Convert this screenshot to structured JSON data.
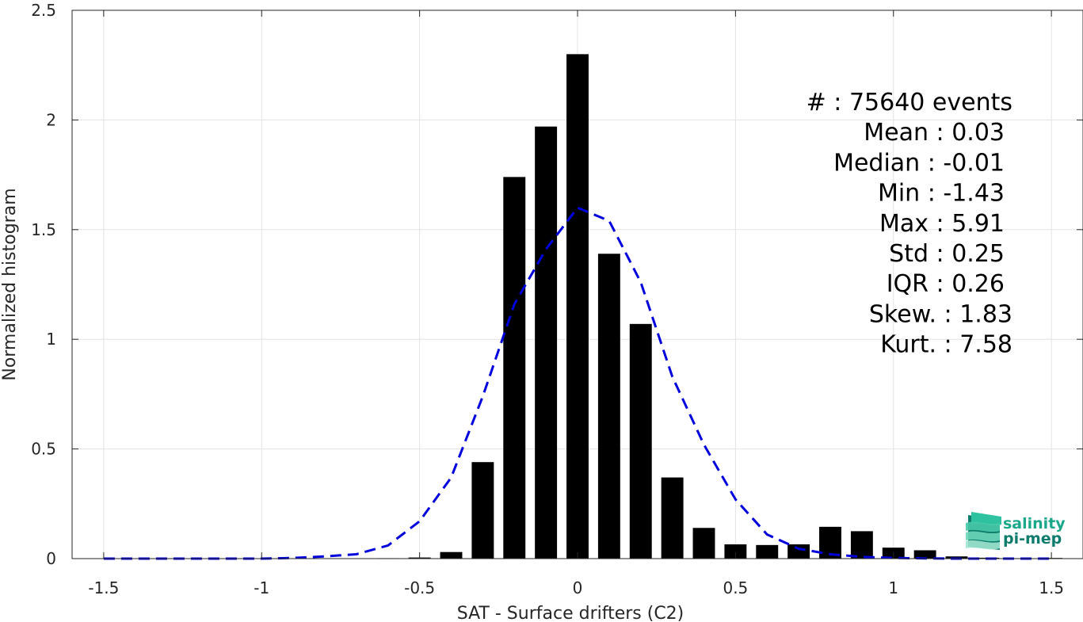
{
  "chart_data": {
    "type": "bar",
    "xlabel": "SAT - Surface drifters (C2)",
    "ylabel": "Normalized histogram",
    "xlim": [
      -1.6,
      1.6
    ],
    "ylim": [
      0,
      2.5
    ],
    "xticks": [
      -1.5,
      -1,
      -0.5,
      0,
      0.5,
      1,
      1.5
    ],
    "xtick_labels": [
      "-1.5",
      "-1",
      "-0.5",
      "0",
      "0.5",
      "1",
      "1.5"
    ],
    "yticks": [
      0,
      0.5,
      1,
      1.5,
      2,
      2.5
    ],
    "ytick_labels": [
      "0",
      "0.5",
      "1",
      "1.5",
      "2",
      "2.5"
    ],
    "grid": true,
    "bar_width": 0.07,
    "bar_color": "#000000",
    "bars": {
      "x": [
        -1.5,
        -1.4,
        -1.3,
        -1.2,
        -1.1,
        -1.0,
        -0.9,
        -0.8,
        -0.7,
        -0.6,
        -0.5,
        -0.4,
        -0.3,
        -0.2,
        -0.1,
        0.0,
        0.1,
        0.2,
        0.3,
        0.4,
        0.5,
        0.6,
        0.7,
        0.8,
        0.9,
        1.0,
        1.1,
        1.2,
        1.3,
        1.4,
        1.5
      ],
      "values": [
        0,
        0,
        0,
        0,
        0,
        0,
        0,
        0,
        0.001,
        0.002,
        0.005,
        0.03,
        0.44,
        1.74,
        1.97,
        2.3,
        1.39,
        1.07,
        0.37,
        0.14,
        0.065,
        0.062,
        0.065,
        0.145,
        0.125,
        0.05,
        0.038,
        0.01,
        0.004,
        0.002,
        0.003
      ]
    },
    "fit_curve": {
      "style": "dashed",
      "color": "#0000dd",
      "x": [
        -1.5,
        -1.4,
        -1.3,
        -1.2,
        -1.1,
        -1.0,
        -0.9,
        -0.8,
        -0.7,
        -0.6,
        -0.5,
        -0.4,
        -0.3,
        -0.2,
        -0.1,
        0.0,
        0.1,
        0.2,
        0.3,
        0.4,
        0.5,
        0.6,
        0.7,
        0.8,
        0.9,
        1.0,
        1.1,
        1.2,
        1.3,
        1.4,
        1.5
      ],
      "values": [
        0,
        0,
        0,
        0,
        0,
        0,
        0.003,
        0.01,
        0.02,
        0.06,
        0.17,
        0.37,
        0.74,
        1.16,
        1.41,
        1.6,
        1.54,
        1.26,
        0.83,
        0.52,
        0.27,
        0.11,
        0.045,
        0.02,
        0.008,
        0.003,
        0.001,
        0,
        0,
        0,
        0
      ]
    },
    "annotation_position": "top-right",
    "stats": [
      {
        "label": "#  : 75640 events"
      },
      {
        "label": "Mean : 0.03"
      },
      {
        "label": "Median : -0.01"
      },
      {
        "label": "Min : -1.43"
      },
      {
        "label": "Max : 5.91"
      },
      {
        "label": "Std : 0.25"
      },
      {
        "label": "IQR : 0.26"
      },
      {
        "label": "Skew. : 1.83"
      },
      {
        "label": "Kurt. : 7.58"
      }
    ]
  },
  "logo": {
    "line1": "salinity",
    "line2": "pi-mep",
    "icon": "salinity-waves-icon",
    "color_primary": "#1aa88a",
    "color_secondary": "#0d7c6c"
  }
}
